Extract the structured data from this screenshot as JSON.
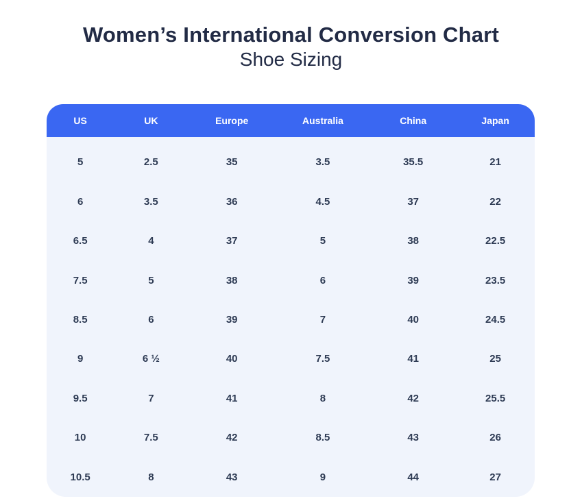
{
  "header": {
    "title": "Women’s International Conversion Chart",
    "subtitle": "Shoe Sizing"
  },
  "colors": {
    "header_bg": "#3a67f2",
    "header_text": "#ffffff",
    "body_bg": "#f0f4fc",
    "cell_text": "#2d3a53",
    "title_text": "#222b45"
  },
  "chart_data": {
    "type": "table",
    "title": "Women’s International Conversion Chart — Shoe Sizing",
    "columns": [
      "US",
      "UK",
      "Europe",
      "Australia",
      "China",
      "Japan"
    ],
    "rows": [
      [
        "5",
        "2.5",
        "35",
        "3.5",
        "35.5",
        "21"
      ],
      [
        "6",
        "3.5",
        "36",
        "4.5",
        "37",
        "22"
      ],
      [
        "6.5",
        "4",
        "37",
        "5",
        "38",
        "22.5"
      ],
      [
        "7.5",
        "5",
        "38",
        "6",
        "39",
        "23.5"
      ],
      [
        "8.5",
        "6",
        "39",
        "7",
        "40",
        "24.5"
      ],
      [
        "9",
        "6 ½",
        "40",
        "7.5",
        "41",
        "25"
      ],
      [
        "9.5",
        "7",
        "41",
        "8",
        "42",
        "25.5"
      ],
      [
        "10",
        "7.5",
        "42",
        "8.5",
        "43",
        "26"
      ],
      [
        "10.5",
        "8",
        "43",
        "9",
        "44",
        "27"
      ]
    ]
  }
}
